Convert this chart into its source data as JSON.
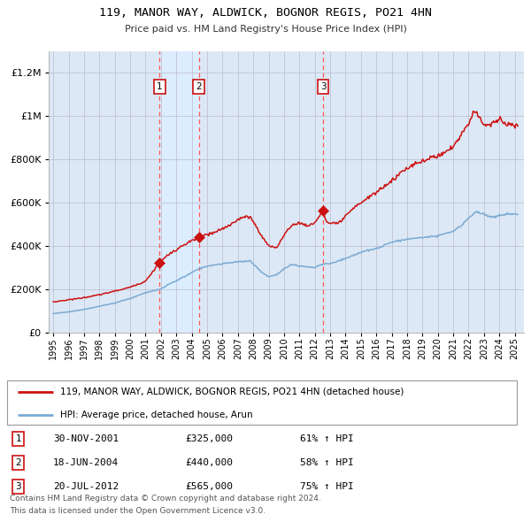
{
  "title": "119, MANOR WAY, ALDWICK, BOGNOR REGIS, PO21 4HN",
  "subtitle": "Price paid vs. HM Land Registry's House Price Index (HPI)",
  "legend_line1": "119, MANOR WAY, ALDWICK, BOGNOR REGIS, PO21 4HN (detached house)",
  "legend_line2": "HPI: Average price, detached house, Arun",
  "footer1": "Contains HM Land Registry data © Crown copyright and database right 2024.",
  "footer2": "This data is licensed under the Open Government Licence v3.0.",
  "transactions": [
    {
      "num": 1,
      "date": "30-NOV-2001",
      "price": 325000,
      "pct": "61%",
      "dir": "↑",
      "date_x": 2001.917
    },
    {
      "num": 2,
      "date": "18-JUN-2004",
      "price": 440000,
      "pct": "58%",
      "dir": "↑",
      "date_x": 2004.462
    },
    {
      "num": 3,
      "date": "20-JUL-2012",
      "price": 565000,
      "pct": "75%",
      "dir": "↑",
      "date_x": 2012.551
    }
  ],
  "hpi_color": "#7aaad4",
  "price_color": "#cc1111",
  "shade_color": "#ddeeff",
  "vline_color": "#ff5555",
  "grid_color": "#bbbbcc",
  "plot_bg": "#dce8f5",
  "ylim": [
    0,
    1300000
  ],
  "yticks": [
    0,
    200000,
    400000,
    600000,
    800000,
    1000000,
    1200000
  ],
  "ytick_labels": [
    "£0",
    "£200K",
    "£400K",
    "£600K",
    "£800K",
    "£1M",
    "£1.2M"
  ],
  "xlim_start": 1994.7,
  "xlim_end": 2025.6,
  "hpi_anchors": [
    [
      1995.0,
      88000
    ],
    [
      1996.0,
      96000
    ],
    [
      1997.0,
      107000
    ],
    [
      1998.0,
      122000
    ],
    [
      1999.0,
      137000
    ],
    [
      2000.0,
      158000
    ],
    [
      2001.0,
      185000
    ],
    [
      2001.917,
      200000
    ],
    [
      2002.5,
      222000
    ],
    [
      2003.5,
      258000
    ],
    [
      2004.462,
      295000
    ],
    [
      2005.0,
      308000
    ],
    [
      2006.0,
      318000
    ],
    [
      2007.0,
      328000
    ],
    [
      2007.8,
      332000
    ],
    [
      2008.5,
      282000
    ],
    [
      2009.0,
      258000
    ],
    [
      2009.5,
      268000
    ],
    [
      2010.0,
      295000
    ],
    [
      2010.5,
      315000
    ],
    [
      2011.0,
      308000
    ],
    [
      2011.5,
      305000
    ],
    [
      2012.0,
      300000
    ],
    [
      2012.551,
      318000
    ],
    [
      2013.0,
      318000
    ],
    [
      2014.0,
      342000
    ],
    [
      2015.0,
      372000
    ],
    [
      2016.0,
      388000
    ],
    [
      2017.0,
      418000
    ],
    [
      2018.0,
      432000
    ],
    [
      2019.0,
      440000
    ],
    [
      2020.0,
      448000
    ],
    [
      2021.0,
      468000
    ],
    [
      2021.5,
      492000
    ],
    [
      2022.0,
      532000
    ],
    [
      2022.5,
      558000
    ],
    [
      2023.0,
      548000
    ],
    [
      2023.5,
      532000
    ],
    [
      2024.0,
      542000
    ],
    [
      2024.5,
      548000
    ],
    [
      2025.2,
      548000
    ]
  ],
  "price_anchors": [
    [
      1995.0,
      142000
    ],
    [
      1996.0,
      152000
    ],
    [
      1997.0,
      162000
    ],
    [
      1998.0,
      175000
    ],
    [
      1999.0,
      192000
    ],
    [
      2000.0,
      210000
    ],
    [
      2001.0,
      238000
    ],
    [
      2001.917,
      325000
    ],
    [
      2002.5,
      362000
    ],
    [
      2003.0,
      382000
    ],
    [
      2003.5,
      405000
    ],
    [
      2004.0,
      425000
    ],
    [
      2004.462,
      440000
    ],
    [
      2004.9,
      452000
    ],
    [
      2005.5,
      462000
    ],
    [
      2006.5,
      498000
    ],
    [
      2007.0,
      525000
    ],
    [
      2007.8,
      538000
    ],
    [
      2008.5,
      452000
    ],
    [
      2009.0,
      402000
    ],
    [
      2009.5,
      392000
    ],
    [
      2010.0,
      448000
    ],
    [
      2010.5,
      498000
    ],
    [
      2011.0,
      508000
    ],
    [
      2011.5,
      492000
    ],
    [
      2012.0,
      508000
    ],
    [
      2012.551,
      565000
    ],
    [
      2012.7,
      515000
    ],
    [
      2013.0,
      505000
    ],
    [
      2013.5,
      502000
    ],
    [
      2014.5,
      572000
    ],
    [
      2015.0,
      602000
    ],
    [
      2016.0,
      648000
    ],
    [
      2017.0,
      702000
    ],
    [
      2018.0,
      762000
    ],
    [
      2019.0,
      792000
    ],
    [
      2020.0,
      818000
    ],
    [
      2021.0,
      858000
    ],
    [
      2022.0,
      968000
    ],
    [
      2022.4,
      1025000
    ],
    [
      2022.8,
      988000
    ],
    [
      2023.0,
      962000
    ],
    [
      2023.5,
      962000
    ],
    [
      2024.0,
      988000
    ],
    [
      2024.5,
      962000
    ],
    [
      2025.2,
      955000
    ]
  ]
}
